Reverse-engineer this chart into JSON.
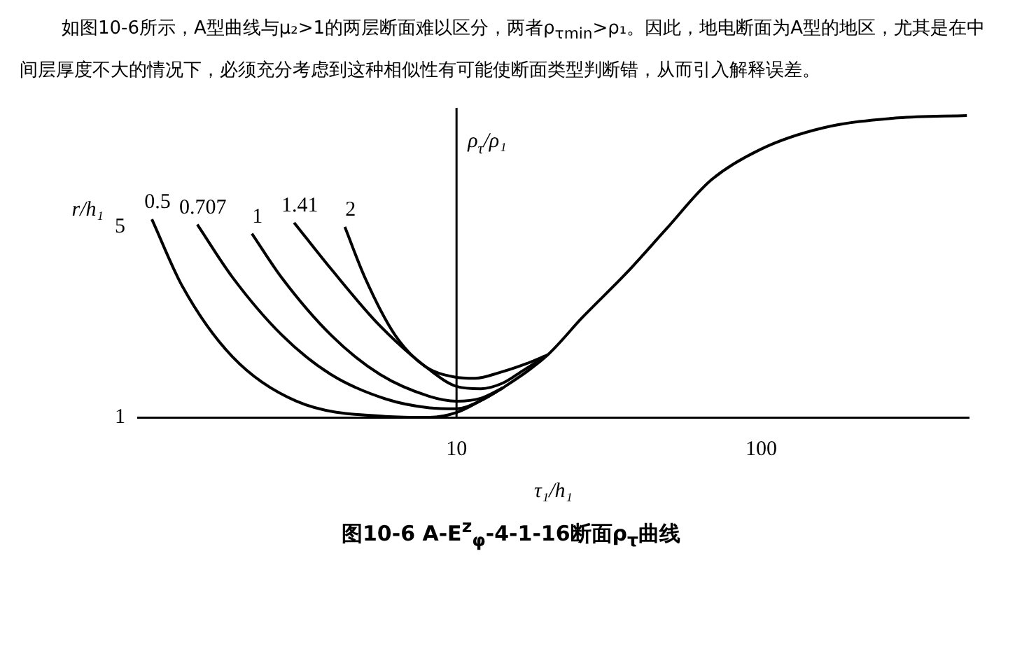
{
  "chart_data": {
    "type": "line",
    "title": "图10-6 A-E$^{z}$$_{φ}$-4-1-16断面ρ$_{τ}$曲线",
    "annotations": [
      "如图10-6所示，A型曲线与μ₂>1的两层断面难以区分，两者ρ$_{τmin}$>ρ₁。因此，地电断面为A型的地区，尤其是在中间层厚度不大的情况下，必须充分考虑到这种相似性有可能使断面类型判断错，从而引入解释误差。"
    ],
    "xlabel": "τ₁/h₁",
    "ylabel": "ρ$_{τ}$/ρ₁",
    "legend_title": "r/h₁",
    "log": "x",
    "xlim": [
      0.9,
      480
    ],
    "xticks": [
      10,
      100
    ],
    "ylim": [
      1,
      7.5
    ],
    "yticks": [
      1,
      5
    ],
    "ref_lines": [
      {
        "axis": "x",
        "value": 10,
        "color": "#000000"
      }
    ],
    "grid": false,
    "legend": false,
    "marker": "none",
    "line_style": "solid",
    "series": [
      {
        "name": "0.5",
        "color": "#000000",
        "x": [
          1.0,
          1.26,
          1.84,
          2.98,
          5.83,
          8.15,
          10,
          12,
          14.2,
          19.9,
          25.9,
          36.1,
          48.7,
          68.1,
          98.9,
          160,
          281,
          473
        ],
        "values": [
          5.16,
          3.75,
          2.27,
          1.34,
          1.02,
          1.0,
          1.1,
          1.35,
          1.62,
          2.31,
          3.1,
          4.03,
          4.95,
          5.97,
          6.62,
          7.08,
          7.29,
          7.34
        ]
      },
      {
        "name": "0.707",
        "color": "#000000",
        "x": [
          1.41,
          1.84,
          2.67,
          3.87,
          5.83,
          8.15,
          10,
          12,
          14.2
        ],
        "values": [
          5.05,
          3.94,
          2.73,
          1.9,
          1.39,
          1.2,
          1.18,
          1.35,
          1.62
        ]
      },
      {
        "name": "1",
        "color": "#000000",
        "x": [
          2.13,
          2.67,
          3.87,
          5.61,
          8.15,
          10,
          12,
          14.2
        ],
        "values": [
          4.86,
          3.93,
          2.73,
          1.9,
          1.44,
          1.34,
          1.4,
          1.62
        ]
      },
      {
        "name": "1.41",
        "color": "#000000",
        "x": [
          2.93,
          3.87,
          5.61,
          8.15,
          10,
          12,
          14.2,
          16.5,
          19.9
        ],
        "values": [
          5.09,
          4.12,
          2.92,
          2.0,
          1.65,
          1.6,
          1.72,
          1.98,
          2.31
        ]
      },
      {
        "name": "2",
        "color": "#000000",
        "x": [
          4.3,
          5.0,
          6.28,
          7.85,
          9.8,
          11.5,
          14,
          17,
          19.9
        ],
        "values": [
          5.0,
          3.94,
          2.73,
          2.08,
          1.85,
          1.82,
          1.95,
          2.13,
          2.31
        ]
      }
    ]
  }
}
